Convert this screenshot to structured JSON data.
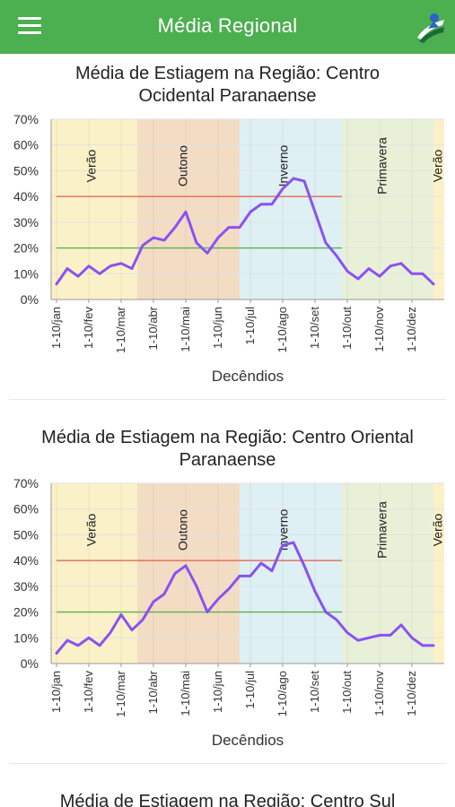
{
  "app": {
    "title": "Média Regional",
    "menu_icon": "hamburger-menu-icon",
    "logo_icon": "app-logo-icon"
  },
  "common": {
    "x_ticks": [
      "1-10/jan",
      "1-10/fev",
      "1-10/mar",
      "1-10/abr",
      "1-10/mai",
      "1-10/jun",
      "1-10/jul",
      "1-10/ago",
      "1-10/set",
      "1-10/out",
      "1-10/nov",
      "1-10/dez"
    ],
    "y_ticks": [
      "0%",
      "10%",
      "20%",
      "30%",
      "40%",
      "50%",
      "60%",
      "70%"
    ],
    "xlabel": "Decêndios",
    "seasons": [
      {
        "label": "Verão",
        "start": 0,
        "end": 8,
        "color": "#fbf1c8"
      },
      {
        "label": "Outono",
        "start": 8,
        "end": 17.5,
        "color": "#f3dcc4"
      },
      {
        "label": "Inverno",
        "start": 17.5,
        "end": 27,
        "color": "#def0f3"
      },
      {
        "label": "Primavera",
        "start": 27,
        "end": 35.5,
        "color": "#e8f1d8"
      },
      {
        "label": "Verão",
        "start": 35.5,
        "end": 37,
        "color": "#fbf1c8"
      }
    ],
    "threshold_lines": [
      {
        "value": 40,
        "color": "#e35a43"
      },
      {
        "value": 20,
        "color": "#5fb04c"
      }
    ],
    "line_color": "#8a52f0"
  },
  "charts": [
    {
      "title_line1": "Média de Estiagem na Região: Centro",
      "title_line2": "Ocidental Paranaense"
    },
    {
      "title_line1": "Média de Estiagem na Região: Centro Oriental",
      "title_line2": "Paranaense"
    },
    {
      "title_line1": "Média de Estiagem na Região: Centro Sul",
      "title_line2": ""
    }
  ],
  "chart_data": [
    {
      "type": "line",
      "title": "Média de Estiagem na Região: Centro Ocidental Paranaense",
      "xlabel": "Decêndios",
      "ylabel": "",
      "ylim": [
        0,
        70
      ],
      "y_unit": "%",
      "x_tick_labels": [
        "1-10/jan",
        "1-10/fev",
        "1-10/mar",
        "1-10/abr",
        "1-10/mai",
        "1-10/jun",
        "1-10/jul",
        "1-10/ago",
        "1-10/set",
        "1-10/out",
        "1-10/nov",
        "1-10/dez"
      ],
      "reference_lines": [
        40,
        20
      ],
      "grid": true,
      "values": [
        6,
        12,
        9,
        13,
        10,
        13,
        14,
        12,
        21,
        24,
        23,
        28,
        34,
        22,
        18,
        24,
        28,
        28,
        34,
        37,
        37,
        43,
        47,
        46,
        34,
        22,
        17,
        11,
        8,
        12,
        9,
        13,
        14,
        10,
        10,
        6
      ]
    },
    {
      "type": "line",
      "title": "Média de Estiagem na Região: Centro Oriental Paranaense",
      "xlabel": "Decêndios",
      "ylabel": "",
      "ylim": [
        0,
        70
      ],
      "y_unit": "%",
      "x_tick_labels": [
        "1-10/jan",
        "1-10/fev",
        "1-10/mar",
        "1-10/abr",
        "1-10/mai",
        "1-10/jun",
        "1-10/jul",
        "1-10/ago",
        "1-10/set",
        "1-10/out",
        "1-10/nov",
        "1-10/dez"
      ],
      "reference_lines": [
        40,
        20
      ],
      "grid": true,
      "values": [
        4,
        9,
        7,
        10,
        7,
        12,
        19,
        13,
        17,
        24,
        27,
        35,
        38,
        30,
        20,
        25,
        29,
        34,
        34,
        39,
        36,
        46,
        47,
        38,
        28,
        20,
        17,
        12,
        9,
        10,
        11,
        11,
        15,
        10,
        7,
        7
      ]
    }
  ]
}
